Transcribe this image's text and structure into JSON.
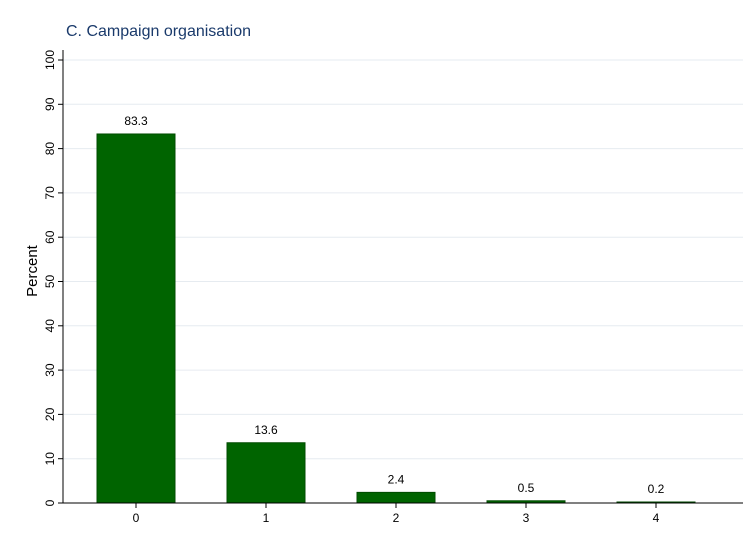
{
  "chart_data": {
    "type": "bar",
    "title": "C. Campaign organisation",
    "xlabel": "",
    "ylabel": "Percent",
    "categories": [
      "0",
      "1",
      "2",
      "3",
      "4"
    ],
    "values": [
      83.3,
      13.6,
      2.4,
      0.5,
      0.2
    ],
    "value_labels": [
      "83.3",
      "13.6",
      "2.4",
      "0.5",
      "0.2"
    ],
    "ylim": [
      0,
      100
    ],
    "yticks": [
      0,
      10,
      20,
      30,
      40,
      50,
      60,
      70,
      80,
      90,
      100
    ],
    "grid": true,
    "bar_color": "#006400",
    "bar_edge_color": "#004b00",
    "grid_color": "#e6ebf0",
    "title_color": "#1a3a6b"
  }
}
